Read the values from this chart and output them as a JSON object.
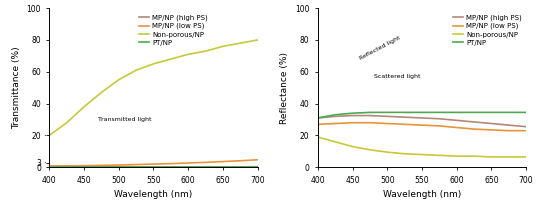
{
  "wavelength": [
    400,
    425,
    450,
    475,
    500,
    525,
    550,
    575,
    600,
    625,
    650,
    675,
    700
  ],
  "transmittance": {
    "MP_NP_high_PS": [
      0.3,
      0.3,
      0.3,
      0.3,
      0.3,
      0.3,
      0.3,
      0.3,
      0.3,
      0.3,
      0.3,
      0.3,
      0.4
    ],
    "MP_NP_low_PS": [
      0.8,
      0.9,
      1.0,
      1.2,
      1.4,
      1.7,
      2.0,
      2.3,
      2.7,
      3.1,
      3.6,
      4.1,
      4.7
    ],
    "Non_porous_NP": [
      20,
      28,
      38,
      47,
      55,
      61,
      65,
      68,
      71,
      73,
      76,
      78,
      80
    ],
    "PT_NP": [
      0.1,
      0.1,
      0.1,
      0.1,
      0.1,
      0.1,
      0.1,
      0.1,
      0.1,
      0.1,
      0.1,
      0.1,
      0.1
    ]
  },
  "reflectance": {
    "MP_NP_high_PS": [
      31,
      32,
      32.5,
      32.5,
      32,
      31.5,
      31,
      30.5,
      29.5,
      28.5,
      27.5,
      26.5,
      25.5
    ],
    "MP_NP_low_PS": [
      27,
      27.5,
      28,
      28,
      27.5,
      27,
      26.5,
      26,
      25,
      24,
      23.5,
      23,
      23
    ],
    "Non_porous_NP": [
      19,
      16,
      13,
      11,
      9.5,
      8.5,
      8,
      7.5,
      7,
      7,
      6.5,
      6.5,
      6.5
    ],
    "PT_NP": [
      31,
      33,
      34,
      34.5,
      34.5,
      34.5,
      34.5,
      34.5,
      34.5,
      34.5,
      34.5,
      34.5,
      34.5
    ]
  },
  "colors": {
    "MP_NP_high_PS": "#b5867a",
    "MP_NP_low_PS": "#e8943a",
    "Non_porous_NP": "#c8c83a",
    "PT_NP": "#4aaa52"
  },
  "labels": {
    "MP_NP_high_PS": "MP/NP (high PS)",
    "MP_NP_low_PS": "MP/NP (low PS)",
    "Non_porous_NP": "Non-porous/NP",
    "PT_NP": "PT/NP"
  },
  "xlabel": "Wavelength (nm)",
  "ylabel_left": "Transmittance (%)",
  "ylabel_right": "Reflectance (%)",
  "linewidth": 1.2
}
